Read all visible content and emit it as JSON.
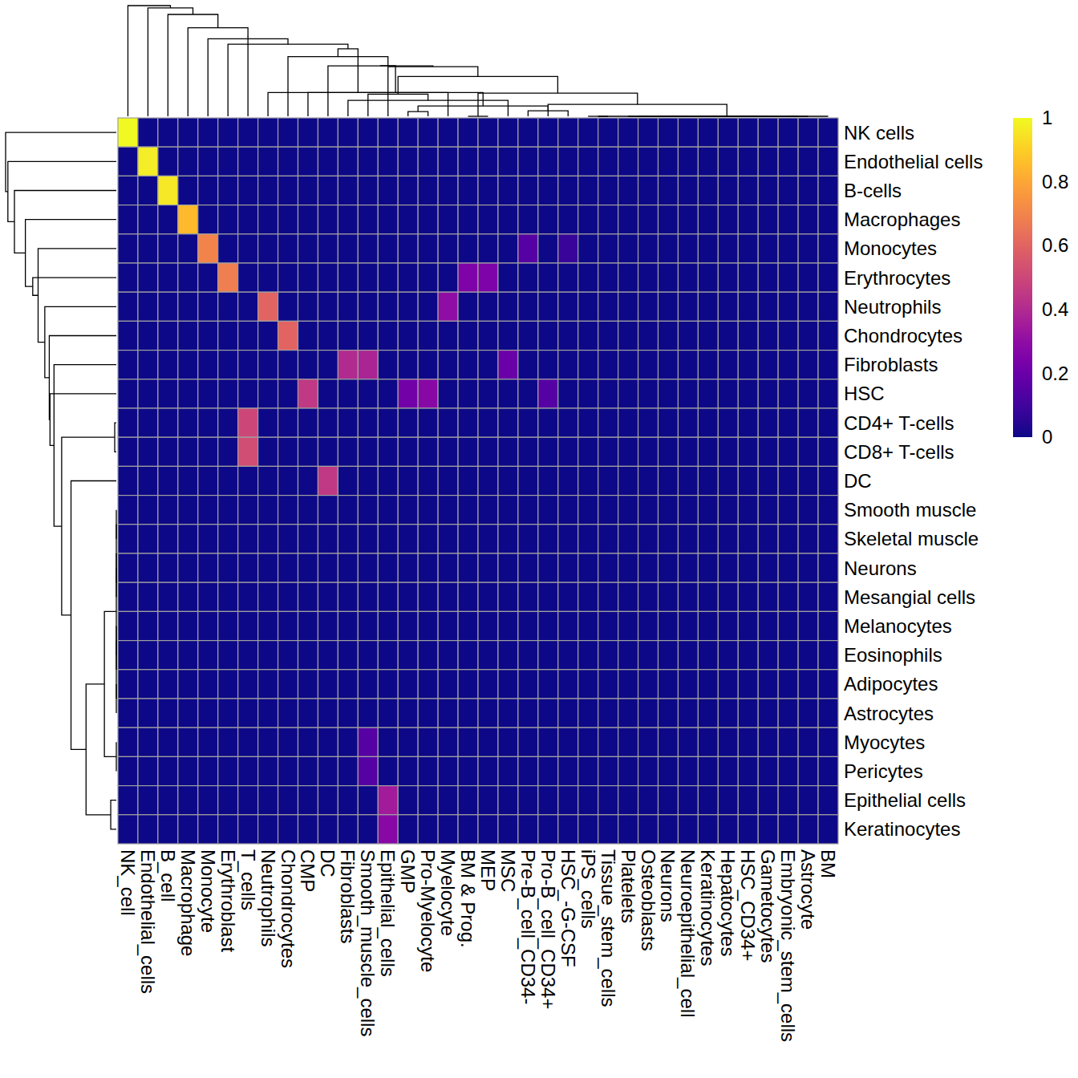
{
  "chart_data": {
    "type": "heatmap",
    "color": "plasma",
    "rows": [
      "NK cells",
      "Endothelial cells",
      "B-cells",
      "Macrophages",
      "Monocytes",
      "Erythrocytes",
      "Neutrophils",
      "Chondrocytes",
      "Fibroblasts",
      "HSC",
      "CD4+ T-cells",
      "CD8+ T-cells",
      "DC",
      "Smooth muscle",
      "Skeletal muscle",
      "Neurons",
      "Mesangial cells",
      "Melanocytes",
      "Eosinophils",
      "Adipocytes",
      "Astrocytes",
      "Myocytes",
      "Pericytes",
      "Epithelial cells",
      "Keratinocytes"
    ],
    "columns": [
      "NK_cell",
      "Endothelial_cells",
      "B_cell",
      "Macrophage",
      "Monocyte",
      "Erythroblast",
      "T_cells",
      "Neutrophils",
      "Chondrocytes",
      "CMP",
      "DC",
      "Fibroblasts",
      "Smooth_muscle_cells",
      "Epithelial_cells",
      "GMP",
      "Pro-Myelocyte",
      "Myelocyte",
      "BM & Prog.",
      "MEP",
      "MSC",
      "Pre-B_cell_CD34-",
      "Pro-B_cell_CD34+",
      "HSC_-G-CSF",
      "iPS_cells",
      "Tissue_stem_cells",
      "Platelets",
      "Osteoblasts",
      "Neurons",
      "Neuroepithelial_cell",
      "Keratinocytes",
      "Hepatocytes",
      "HSC_CD34+",
      "Gametocytes",
      "Embryonic_stem_cells",
      "Astrocyte",
      "BM"
    ],
    "cells": [
      [
        1,
        0,
        0,
        0,
        0,
        0,
        0,
        0,
        0,
        0,
        0,
        0,
        0,
        0,
        0,
        0,
        0,
        0,
        0,
        0,
        0,
        0,
        0,
        0,
        0,
        0,
        0,
        0,
        0,
        0,
        0,
        0,
        0,
        0,
        0,
        0
      ],
      [
        0,
        0.97,
        0,
        0,
        0,
        0,
        0,
        0,
        0,
        0,
        0,
        0,
        0,
        0,
        0,
        0,
        0,
        0,
        0,
        0,
        0,
        0,
        0,
        0,
        0,
        0,
        0,
        0,
        0,
        0,
        0,
        0,
        0,
        0,
        0,
        0
      ],
      [
        0,
        0,
        0.96,
        0,
        0,
        0,
        0,
        0,
        0,
        0,
        0,
        0,
        0,
        0,
        0,
        0,
        0,
        0,
        0,
        0,
        0,
        0,
        0,
        0,
        0,
        0,
        0,
        0,
        0,
        0,
        0,
        0,
        0,
        0,
        0,
        0
      ],
      [
        0,
        0,
        0,
        0.85,
        0,
        0,
        0,
        0,
        0,
        0,
        0,
        0,
        0,
        0,
        0,
        0,
        0,
        0,
        0,
        0,
        0,
        0,
        0,
        0,
        0,
        0,
        0,
        0,
        0,
        0,
        0,
        0,
        0,
        0,
        0,
        0
      ],
      [
        0,
        0,
        0,
        0,
        0.7,
        0,
        0,
        0,
        0,
        0,
        0,
        0,
        0,
        0,
        0,
        0,
        0,
        0,
        0,
        0,
        0.15,
        0,
        0.08,
        0,
        0,
        0,
        0,
        0,
        0,
        0,
        0,
        0,
        0,
        0,
        0,
        0
      ],
      [
        0,
        0,
        0,
        0,
        0,
        0.68,
        0,
        0,
        0,
        0,
        0,
        0,
        0,
        0,
        0,
        0,
        0,
        0.25,
        0.25,
        0,
        0,
        0,
        0,
        0,
        0,
        0,
        0,
        0,
        0,
        0,
        0,
        0,
        0,
        0,
        0,
        0
      ],
      [
        0,
        0,
        0,
        0,
        0,
        0,
        0,
        0.6,
        0,
        0,
        0,
        0,
        0,
        0,
        0,
        0,
        0.3,
        0,
        0,
        0,
        0,
        0,
        0,
        0,
        0,
        0,
        0,
        0,
        0,
        0,
        0,
        0,
        0,
        0,
        0,
        0
      ],
      [
        0,
        0,
        0,
        0,
        0,
        0,
        0,
        0,
        0.6,
        0,
        0,
        0,
        0,
        0,
        0,
        0,
        0,
        0,
        0,
        0,
        0,
        0,
        0,
        0,
        0,
        0,
        0,
        0,
        0,
        0,
        0,
        0,
        0,
        0,
        0,
        0
      ],
      [
        0,
        0,
        0,
        0,
        0,
        0,
        0,
        0,
        0,
        0,
        0,
        0.4,
        0.38,
        0,
        0,
        0,
        0,
        0,
        0,
        0.2,
        0,
        0,
        0,
        0,
        0,
        0,
        0,
        0,
        0,
        0,
        0,
        0,
        0,
        0,
        0,
        0
      ],
      [
        0,
        0,
        0,
        0,
        0,
        0,
        0,
        0,
        0,
        0.45,
        0,
        0,
        0,
        0,
        0.22,
        0.28,
        0,
        0,
        0,
        0,
        0,
        0.15,
        0,
        0,
        0,
        0,
        0,
        0,
        0,
        0,
        0,
        0,
        0,
        0,
        0,
        0
      ],
      [
        0,
        0,
        0,
        0,
        0,
        0,
        0.5,
        0,
        0,
        0,
        0,
        0,
        0,
        0,
        0,
        0,
        0,
        0,
        0,
        0,
        0,
        0,
        0,
        0,
        0,
        0,
        0,
        0,
        0,
        0,
        0,
        0,
        0,
        0,
        0,
        0
      ],
      [
        0,
        0,
        0,
        0,
        0,
        0,
        0.52,
        0,
        0,
        0,
        0,
        0,
        0,
        0,
        0,
        0,
        0,
        0,
        0,
        0,
        0,
        0,
        0,
        0,
        0,
        0,
        0,
        0,
        0,
        0,
        0,
        0,
        0,
        0,
        0,
        0
      ],
      [
        0,
        0,
        0,
        0,
        0,
        0,
        0,
        0,
        0,
        0,
        0.45,
        0,
        0,
        0,
        0,
        0,
        0,
        0,
        0,
        0,
        0,
        0,
        0,
        0,
        0,
        0,
        0,
        0,
        0,
        0,
        0,
        0,
        0,
        0,
        0,
        0
      ],
      [
        0,
        0,
        0,
        0,
        0,
        0,
        0,
        0,
        0,
        0,
        0,
        0,
        0,
        0,
        0,
        0,
        0,
        0,
        0,
        0,
        0,
        0,
        0,
        0,
        0,
        0,
        0,
        0,
        0,
        0,
        0,
        0,
        0,
        0,
        0,
        0
      ],
      [
        0,
        0,
        0,
        0,
        0,
        0,
        0,
        0,
        0,
        0,
        0,
        0,
        0,
        0,
        0,
        0,
        0,
        0,
        0,
        0,
        0,
        0,
        0,
        0,
        0,
        0,
        0,
        0,
        0,
        0,
        0,
        0,
        0,
        0,
        0,
        0
      ],
      [
        0,
        0,
        0,
        0,
        0,
        0,
        0,
        0,
        0,
        0,
        0,
        0,
        0,
        0,
        0,
        0,
        0,
        0,
        0,
        0,
        0,
        0,
        0,
        0,
        0,
        0,
        0,
        0,
        0,
        0,
        0,
        0,
        0,
        0,
        0,
        0
      ],
      [
        0,
        0,
        0,
        0,
        0,
        0,
        0,
        0,
        0,
        0,
        0,
        0,
        0,
        0,
        0,
        0,
        0,
        0,
        0,
        0,
        0,
        0,
        0,
        0,
        0,
        0,
        0,
        0,
        0,
        0,
        0,
        0,
        0,
        0,
        0,
        0
      ],
      [
        0,
        0,
        0,
        0,
        0,
        0,
        0,
        0,
        0,
        0,
        0,
        0,
        0,
        0,
        0,
        0,
        0,
        0,
        0,
        0,
        0,
        0,
        0,
        0,
        0,
        0,
        0,
        0,
        0,
        0,
        0,
        0,
        0,
        0,
        0,
        0
      ],
      [
        0,
        0,
        0,
        0,
        0,
        0,
        0,
        0,
        0,
        0,
        0,
        0,
        0,
        0,
        0,
        0,
        0,
        0,
        0,
        0,
        0,
        0,
        0,
        0,
        0,
        0,
        0,
        0,
        0,
        0,
        0,
        0,
        0,
        0,
        0,
        0
      ],
      [
        0,
        0,
        0,
        0,
        0,
        0,
        0,
        0,
        0,
        0,
        0,
        0,
        0,
        0,
        0,
        0,
        0,
        0,
        0,
        0,
        0,
        0,
        0,
        0,
        0,
        0,
        0,
        0,
        0,
        0,
        0,
        0,
        0,
        0,
        0,
        0
      ],
      [
        0,
        0,
        0,
        0,
        0,
        0,
        0,
        0,
        0,
        0,
        0,
        0,
        0,
        0,
        0,
        0,
        0,
        0,
        0,
        0,
        0,
        0,
        0,
        0,
        0,
        0,
        0,
        0,
        0,
        0,
        0,
        0,
        0,
        0,
        0,
        0
      ],
      [
        0,
        0,
        0,
        0,
        0,
        0,
        0,
        0,
        0,
        0,
        0,
        0,
        0.15,
        0,
        0,
        0,
        0,
        0,
        0,
        0,
        0,
        0,
        0,
        0,
        0,
        0,
        0,
        0,
        0,
        0,
        0,
        0,
        0,
        0,
        0,
        0
      ],
      [
        0,
        0,
        0,
        0,
        0,
        0,
        0,
        0,
        0,
        0,
        0,
        0,
        0.15,
        0,
        0,
        0,
        0,
        0,
        0,
        0,
        0,
        0,
        0,
        0,
        0,
        0,
        0,
        0,
        0,
        0,
        0,
        0,
        0,
        0,
        0,
        0
      ],
      [
        0,
        0,
        0,
        0,
        0,
        0,
        0,
        0,
        0,
        0,
        0,
        0,
        0,
        0.35,
        0,
        0,
        0,
        0,
        0,
        0,
        0,
        0,
        0,
        0,
        0,
        0,
        0,
        0,
        0,
        0,
        0,
        0,
        0,
        0,
        0,
        0
      ],
      [
        0,
        0,
        0,
        0,
        0,
        0,
        0,
        0,
        0,
        0,
        0,
        0,
        0,
        0.28,
        0,
        0,
        0,
        0,
        0,
        0,
        0,
        0,
        0,
        0,
        0,
        0,
        0,
        0,
        0,
        0,
        0,
        0,
        0,
        0,
        0,
        0
      ]
    ],
    "colorbar_range": [
      0,
      1
    ],
    "colorbar_ticks": [
      0,
      0.2,
      0.4,
      0.6,
      0.8,
      1
    ]
  }
}
